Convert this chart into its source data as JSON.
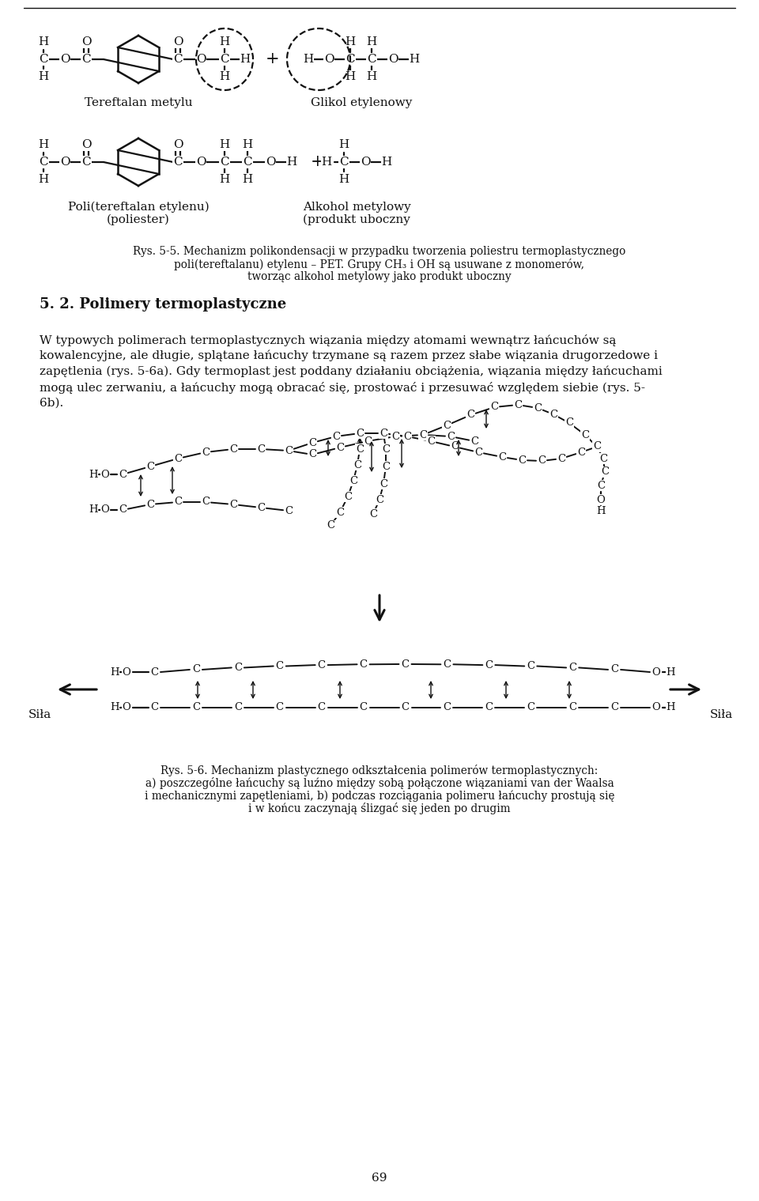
{
  "bg_color": "#ffffff",
  "text_color": "#111111",
  "line_color": "#111111",
  "page_width": 9.6,
  "page_height": 15.19,
  "caption_rys55_line1": "Rys. 5-5. Mechanizm polikondensacji w przypadku tworzenia poliestru termoplastycznego",
  "caption_rys55_line2": "poli(tereftalanu) etylenu – PET. Grupy CH₃ i OH są usuwane z monomerów,",
  "caption_rys55_line3": "tworząc alkohol metylowy jako produkt uboczny",
  "section_title": "5. 2. Polimery termoplastyczne",
  "para1_line1": "W typowych polimerach termoplastycznych wiązania między atomami wewnątrz łańcuchów są",
  "para1_line2": "kowalencyjne, ale długie, splątane łańcuchy trzymane są razem przez słabe wiązania drugorzedowe i",
  "para1_line3": "zapętlenia (rys. 5-6a). Gdy termoplast jest poddany działaniu obciążenia, wiązania między łańcuchami",
  "para1_line4": "mogą ulec zerwaniu, a łańcuchy mogą obracać się, prostować i przesuwać względem siebie (rys. 5-",
  "para1_line5": "6b).",
  "caption_rys56_line1": "Rys. 5-6. Mechanizm plastycznego odkształcenia polimerów termoplastycznych:",
  "caption_rys56_line2": "a) poszczególne łańcuchy są luźno między sobą połączone wiązaniami van der Waalsa",
  "caption_rys56_line3": "i mechanicznymi zapętleniami, b) podczas rozciągania polimeru łańcuchy prostują się",
  "caption_rys56_line4": "i w końcu zaczynają ślizgać się jeden po drugim",
  "page_num": "69",
  "label_tereftalan": "Tereftalan metylu",
  "label_glikol": "Glikol etylenowy",
  "label_poli": "Poli(tereftalan etylenu)",
  "label_poliester": "(poliester)",
  "label_alkohol": "Alkohol metylowy",
  "label_produkt": "(produkt uboczny",
  "label_sila_left": "Siła",
  "label_sila_right": "Siła"
}
